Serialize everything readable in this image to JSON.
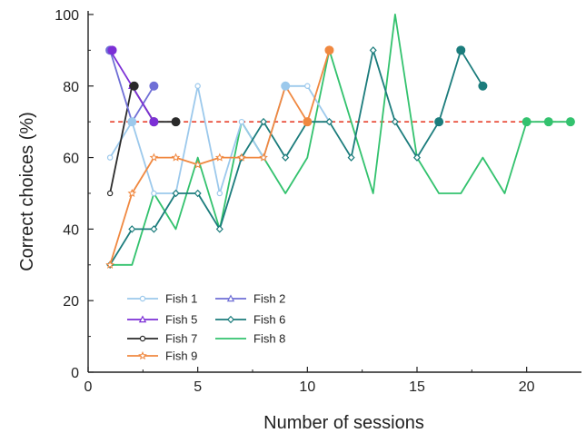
{
  "chart_data": {
    "type": "line",
    "xlabel": "Number of sessions",
    "ylabel": "Correct choices (%)",
    "xlim": [
      0,
      22.5
    ],
    "ylim": [
      0,
      101
    ],
    "xticks": [
      0,
      5,
      10,
      15,
      20
    ],
    "yticks": [
      0,
      20,
      40,
      60,
      80,
      100
    ],
    "threshold": {
      "value": 70,
      "color": "#e8412c",
      "style": "dashed"
    },
    "legend": {
      "placement": "bottom-left"
    },
    "series": [
      {
        "name": "Fish 1",
        "color": "#9cc9ec",
        "marker": "open-circle",
        "x": [
          1,
          2,
          3,
          4,
          5,
          6,
          7,
          8,
          9,
          10,
          11
        ],
        "y": [
          60,
          70,
          50,
          50,
          80,
          50,
          70,
          60,
          80,
          80,
          70
        ],
        "final": [
          9,
          80
        ]
      },
      {
        "name": "Fish 2",
        "color": "#6f6fd6",
        "marker": "open-triangle",
        "x": [
          1,
          2,
          3
        ],
        "y": [
          90,
          70,
          80
        ],
        "final": [
          3,
          80
        ]
      },
      {
        "name": "Fish 5",
        "color": "#7c2fd6",
        "marker": "open-triangle",
        "x": [
          1,
          2,
          3
        ],
        "y": [
          90,
          80,
          70
        ],
        "final": [
          1.1,
          90
        ]
      },
      {
        "name": "Fish 6",
        "color": "#1b7c7c",
        "marker": "open-diamond",
        "x": [
          1,
          2,
          3,
          4,
          5,
          6,
          7,
          8,
          9,
          10,
          11,
          12,
          13,
          14,
          15,
          16,
          17,
          18
        ],
        "y": [
          30,
          40,
          40,
          50,
          50,
          40,
          60,
          70,
          60,
          70,
          70,
          60,
          90,
          70,
          60,
          70,
          90,
          80
        ],
        "final": [
          18,
          80
        ]
      },
      {
        "name": "Fish 7",
        "color": "#2a2a2a",
        "marker": "open-circle",
        "x": [
          1,
          2,
          3,
          4
        ],
        "y": [
          50,
          80,
          70,
          70
        ],
        "final": [
          4,
          70
        ]
      },
      {
        "name": "Fish 8",
        "color": "#33c26e",
        "marker": "none",
        "x": [
          1,
          2,
          3,
          4,
          5,
          6,
          7,
          8,
          9,
          10,
          11,
          12,
          13,
          14,
          15,
          16,
          17,
          18,
          19,
          20,
          21,
          22
        ],
        "y": [
          30,
          30,
          50,
          40,
          60,
          40,
          70,
          60,
          50,
          60,
          90,
          70,
          50,
          100,
          60,
          50,
          50,
          60,
          50,
          70,
          70,
          70
        ],
        "final": [
          22,
          70
        ]
      },
      {
        "name": "Fish 9",
        "color": "#f08840",
        "marker": "open-star",
        "x": [
          1,
          2,
          3,
          4,
          5,
          6,
          7,
          8,
          9,
          10,
          11
        ],
        "y": [
          30,
          50,
          60,
          60,
          58,
          60,
          60,
          60,
          80,
          70,
          90
        ],
        "final": [
          11,
          90
        ]
      }
    ],
    "extra_points": [
      {
        "series": "Fish 2",
        "x": 1,
        "y": 90
      },
      {
        "series": "Fish 7",
        "x": 2.1,
        "y": 80
      },
      {
        "series": "Fish 7",
        "x": 3,
        "y": 70
      },
      {
        "series": "Fish 1",
        "x": 2,
        "y": 70
      },
      {
        "series": "Fish 9",
        "x": 10,
        "y": 70
      },
      {
        "series": "Fish 6",
        "x": 16,
        "y": 70
      },
      {
        "series": "Fish 6",
        "x": 17,
        "y": 90
      },
      {
        "series": "Fish 8",
        "x": 20,
        "y": 70
      },
      {
        "series": "Fish 8",
        "x": 21,
        "y": 70
      },
      {
        "series": "Fish 5",
        "x": 3,
        "y": 70
      }
    ]
  }
}
